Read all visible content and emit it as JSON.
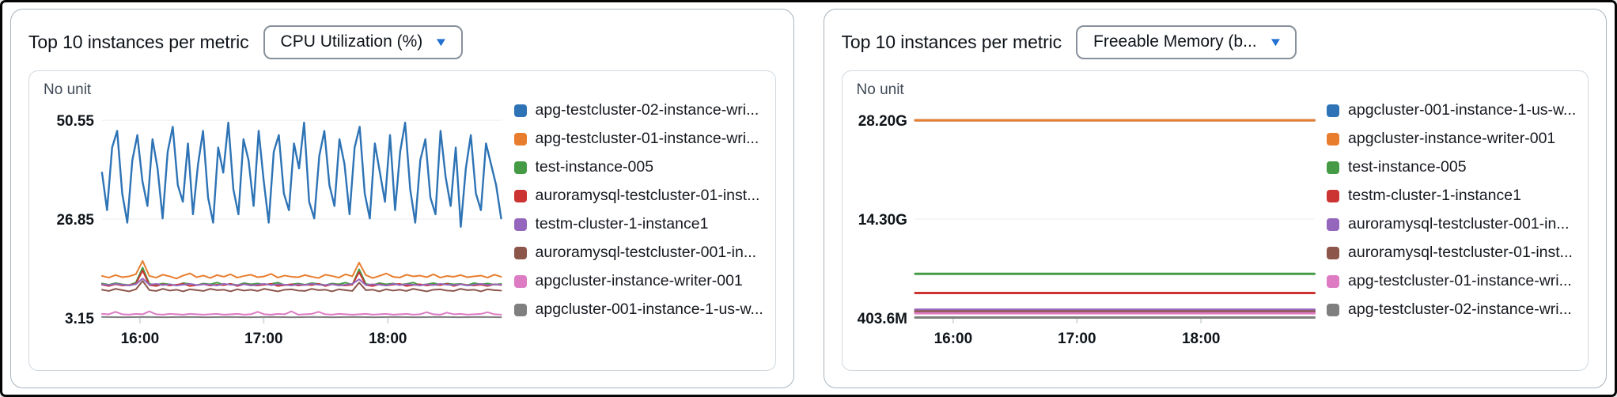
{
  "panels": [
    {
      "title": "Top 10 instances per metric",
      "dropdown_value": "CPU Utilization (%)",
      "caret_icon": "▼",
      "unit_label": "No unit"
    },
    {
      "title": "Top 10 instances per metric",
      "dropdown_value": "Freeable Memory (b...",
      "caret_icon": "▼",
      "unit_label": "No unit"
    }
  ],
  "colors": {
    "accent_caret": "#2370d3",
    "grid": "#e9ecef",
    "panel_border": "#a9b4bd",
    "card_border": "#d2d9df"
  },
  "chart_data": [
    {
      "type": "line",
      "title": "Top 10 instances per metric — CPU Utilization (%)",
      "unit_label": "No unit",
      "xlabel": "",
      "ylabel": "",
      "grid": true,
      "legend_position": "right",
      "ylim": [
        3.15,
        50.55
      ],
      "y_ticks": [
        {
          "label": "50.55",
          "value": 50.55
        },
        {
          "label": "26.85",
          "value": 26.85
        },
        {
          "label": "3.15",
          "value": 3.15
        }
      ],
      "x_ticks": [
        {
          "label": "16:00",
          "pos": 0.095
        },
        {
          "label": "17:00",
          "pos": 0.405
        },
        {
          "label": "18:00",
          "pos": 0.716
        }
      ],
      "stroke_width": 2,
      "series": [
        {
          "name": "apg-testcluster-02-instance-wri...",
          "color": "#2d73b5",
          "stroke_width": 2.4,
          "values": [
            38,
            29,
            44,
            48,
            33,
            26,
            41,
            47,
            36,
            30,
            46,
            39,
            27,
            43,
            49,
            35,
            31,
            45,
            28,
            40,
            48,
            32,
            26,
            44,
            38,
            50,
            34,
            28,
            46,
            41,
            30,
            48,
            36,
            26,
            43,
            47,
            33,
            29,
            45,
            39,
            50,
            31,
            27,
            42,
            48,
            35,
            30,
            46,
            40,
            28,
            44,
            49,
            33,
            27,
            45,
            38,
            31,
            47,
            29,
            43,
            50,
            34,
            26,
            41,
            46,
            32,
            28,
            48,
            37,
            30,
            44,
            25,
            39,
            47,
            33,
            29,
            45,
            40,
            35,
            27
          ]
        },
        {
          "name": "apg-testcluster-01-instance-wri...",
          "color": "#e87d2e",
          "stroke_width": 2,
          "values": [
            13.2,
            12.8,
            13.4,
            12.9,
            13.1,
            13.6,
            16.8,
            13.2,
            12.8,
            13.5,
            13.1,
            12.6,
            13.3,
            13.8,
            12.9,
            13.3,
            12.7,
            13.4,
            13.0,
            13.6,
            12.8,
            13.2,
            13.5,
            12.9,
            13.1,
            13.7,
            12.8,
            13.3,
            13.0,
            12.9,
            13.4,
            13.0,
            12.7,
            13.5,
            13.2,
            12.8,
            13.6,
            13.1,
            16.4,
            13.4,
            12.7,
            13.2,
            13.8,
            13.0,
            12.8,
            13.5,
            13.1,
            13.3,
            12.9,
            13.6,
            12.8,
            13.2,
            13.0,
            13.4,
            12.9,
            13.1,
            13.3,
            12.8,
            13.5,
            13.0
          ]
        },
        {
          "name": "test-instance-005",
          "color": "#459b45",
          "stroke_width": 2,
          "values": [
            11.4,
            11.1,
            11.5,
            11.2,
            11.0,
            11.6,
            15.2,
            11.3,
            11.1,
            11.4,
            11.2,
            10.9,
            11.5,
            11.3,
            11.0,
            11.4,
            11.2,
            11.6,
            11.1,
            11.3,
            11.0,
            11.5,
            11.2,
            11.4,
            11.1,
            11.3,
            11.6,
            11.0,
            11.2,
            11.4,
            11.1,
            11.5,
            11.3,
            11.0,
            11.4,
            11.2,
            11.6,
            11.1,
            14.8,
            11.3,
            11.0,
            11.5,
            11.2,
            11.4,
            11.1,
            11.3,
            11.6,
            11.0,
            11.2,
            11.5,
            11.1,
            11.4,
            11.2,
            11.3,
            11.0,
            11.5,
            11.2,
            11.4,
            11.1,
            11.3
          ]
        },
        {
          "name": "auroramysql-testcluster-01-inst...",
          "color": "#cc3333",
          "stroke_width": 2,
          "values": [
            11.1,
            10.8,
            11.2,
            10.9,
            11.0,
            11.3,
            14.5,
            11.0,
            10.8,
            11.2,
            10.9,
            11.1,
            11.3,
            10.8,
            11.0,
            11.2,
            10.9,
            11.1,
            11.0,
            11.3,
            10.8,
            11.2,
            11.0,
            10.9,
            11.1,
            11.3,
            10.8,
            11.0,
            11.2,
            10.9,
            11.1,
            11.0,
            11.3,
            10.8,
            11.2,
            11.0,
            10.9,
            11.1,
            14.1,
            11.0,
            10.8,
            11.2,
            10.9,
            11.1,
            11.3,
            10.8,
            11.0,
            11.2,
            10.9,
            11.1,
            11.0,
            11.3,
            10.8,
            11.2,
            11.0,
            10.9,
            11.1,
            10.8,
            11.2,
            11.0
          ]
        },
        {
          "name": "testm-cluster-1-instance1",
          "color": "#9467bd",
          "stroke_width": 2,
          "values": [
            11.2,
            11.0,
            11.3,
            11.1,
            10.9,
            11.2,
            12.6,
            11.1,
            11.3,
            11.0,
            11.2,
            10.9,
            11.1,
            11.3,
            11.0,
            11.2,
            11.1,
            10.9,
            11.3,
            11.1,
            11.0,
            11.2,
            10.9,
            11.1,
            11.3,
            11.0,
            11.2,
            11.1,
            10.9,
            11.2,
            11.0,
            11.3,
            11.1,
            11.0,
            11.2,
            10.9,
            11.1,
            11.3,
            12.4,
            11.0,
            11.2,
            11.1,
            10.9,
            11.3,
            11.0,
            11.2,
            11.1,
            10.9,
            11.2,
            11.0,
            11.3,
            11.1,
            11.0,
            11.2,
            10.9,
            11.1,
            11.3,
            11.0,
            11.2,
            11.1
          ]
        },
        {
          "name": "auroramysql-testcluster-001-in...",
          "color": "#8c564b",
          "stroke_width": 2,
          "values": [
            9.9,
            9.6,
            10.1,
            9.8,
            9.5,
            10.0,
            12.0,
            9.8,
            9.6,
            10.1,
            9.7,
            9.9,
            9.5,
            10.0,
            9.8,
            9.6,
            10.1,
            9.8,
            9.9,
            9.5,
            10.0,
            9.7,
            9.9,
            9.6,
            10.1,
            9.8,
            9.5,
            9.9,
            10.0,
            9.7,
            9.6,
            10.1,
            9.8,
            9.9,
            9.5,
            10.0,
            9.8,
            9.6,
            11.6,
            9.8,
            9.9,
            9.5,
            10.0,
            9.7,
            9.9,
            9.6,
            10.1,
            9.8,
            9.5,
            9.9,
            10.0,
            9.7,
            9.6,
            10.1,
            9.8,
            9.9,
            9.5,
            10.0,
            9.8,
            9.7
          ]
        },
        {
          "name": "apgcluster-instance-writer-001",
          "color": "#dd7bc3",
          "stroke_width": 2,
          "values": [
            4.1,
            4.0,
            4.6,
            4.0,
            3.9,
            4.1,
            4.0,
            4.7,
            4.0,
            3.9,
            4.1,
            4.0,
            3.9,
            4.1,
            4.0,
            3.9,
            4.0,
            4.1,
            3.9,
            4.0,
            4.1,
            3.9,
            4.0,
            4.6,
            4.0,
            3.9,
            4.1,
            4.0,
            4.7,
            3.9,
            4.0,
            4.1,
            4.6,
            4.0,
            3.9,
            4.1,
            4.0,
            3.9,
            4.0,
            4.1,
            3.9,
            4.0,
            4.1,
            3.9,
            4.0,
            4.1,
            3.9,
            4.0,
            4.5,
            4.0,
            3.9,
            4.4,
            4.0,
            4.1,
            3.9,
            4.0,
            4.1,
            4.5,
            4.0,
            3.9
          ]
        },
        {
          "name": "apgcluster-001-instance-1-us-w...",
          "color": "#7f7f7f",
          "stroke_width": 2,
          "values": [
            3.35,
            3.3,
            3.35,
            3.3,
            3.35,
            3.3,
            3.35,
            3.3,
            3.35,
            3.3,
            3.35,
            3.3,
            3.35,
            3.3,
            3.35,
            3.3,
            3.35,
            3.3,
            3.35,
            3.3
          ]
        }
      ]
    },
    {
      "type": "line",
      "title": "Top 10 instances per metric — Freeable Memory (bytes)",
      "unit_label": "No unit",
      "xlabel": "",
      "ylabel": "",
      "grid": true,
      "legend_position": "right",
      "ylim": [
        0.4036,
        28.2
      ],
      "y_ticks": [
        {
          "label": "28.20G",
          "value": 28.2
        },
        {
          "label": "14.30G",
          "value": 14.3
        },
        {
          "label": "403.6M",
          "value": 0.4036
        }
      ],
      "x_ticks": [
        {
          "label": "16:00",
          "pos": 0.095
        },
        {
          "label": "17:00",
          "pos": 0.405
        },
        {
          "label": "18:00",
          "pos": 0.716
        }
      ],
      "stroke_width": 3,
      "series": [
        {
          "name": "apgcluster-001-instance-1-us-w...",
          "color": "#2d73b5",
          "values": [
            28.2,
            28.2
          ]
        },
        {
          "name": "apgcluster-instance-writer-001",
          "color": "#e87d2e",
          "values": [
            28.2,
            28.2
          ]
        },
        {
          "name": "test-instance-005",
          "color": "#459b45",
          "values": [
            6.6,
            6.6
          ]
        },
        {
          "name": "testm-cluster-1-instance1",
          "color": "#cc3333",
          "values": [
            3.9,
            3.9
          ]
        },
        {
          "name": "auroramysql-testcluster-001-in...",
          "color": "#9467bd",
          "values": [
            1.55,
            1.55
          ]
        },
        {
          "name": "auroramysql-testcluster-01-inst...",
          "color": "#8c564b",
          "values": [
            1.3,
            1.3
          ]
        },
        {
          "name": "apg-testcluster-01-instance-wri...",
          "color": "#dd7bc3",
          "values": [
            1.05,
            1.05
          ]
        },
        {
          "name": "apg-testcluster-02-instance-wri...",
          "color": "#7f7f7f",
          "values": [
            0.45,
            0.45
          ]
        }
      ]
    }
  ]
}
